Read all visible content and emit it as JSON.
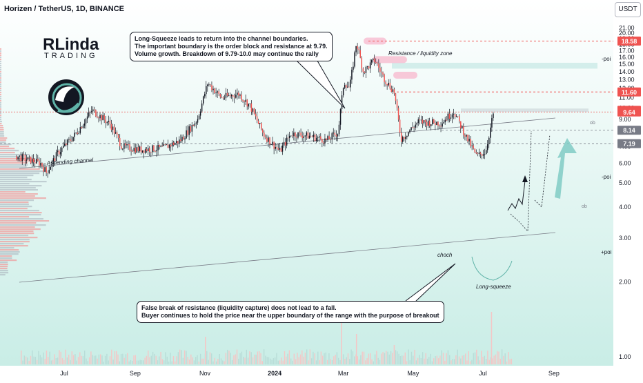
{
  "header": {
    "symbol_line": "Horizen / TetherUS, 1D, BINANCE",
    "currency_button": "USDT"
  },
  "logo": {
    "mark": "RLinda",
    "sub": "TRADING"
  },
  "notes": {
    "top": [
      "Long-Squeeze leads to return into the channel boundaries.",
      "The important boundary is the order block and resistance at 9.79.",
      "Volume growth. Breakdown of 9.79-10.0 may continue the rally"
    ],
    "bottom": [
      "False break of resistance (liquidity capture) does not lead to a fall.",
      "Buyer continues to hold the price near the upper boundary of the range with the purpose of breakout"
    ]
  },
  "annotations": {
    "resistance_zone": "Resistance / liquidity zone",
    "ascending_channel": "Ascending channel",
    "choch": "choch",
    "long_squeeze": "Long-squeeze",
    "ob_upper": "ob",
    "ob_lower": "ob",
    "poi_top": "-poi",
    "poi_mid": "-poi",
    "poi_low": "+poi"
  },
  "colors": {
    "up": "#26a69a",
    "down": "#ef5350",
    "candle": "#131722",
    "level_red": "#ef5350",
    "level_grey": "#787b86",
    "accent": "#5fb3a8"
  },
  "chart_data": {
    "type": "candlestick",
    "title": "Horizen / TetherUS, 1D, BINANCE",
    "y_scale": "log",
    "ylim": [
      0.85,
      26
    ],
    "y_ticks": [
      "1.00",
      "2.00",
      "3.00",
      "4.00",
      "5.00",
      "6.00",
      "7.00",
      "8.00",
      "9.00",
      "10.00",
      "11.00",
      "12.00",
      "13.00",
      "14.00",
      "15.00",
      "16.00",
      "17.00",
      "18.00",
      "19.00",
      "20.00",
      "21.00"
    ],
    "x_ticks": [
      "Jul",
      "Sep",
      "Nov",
      "2024",
      "Mar",
      "May",
      "Jul",
      "Sep"
    ],
    "price_labels": [
      {
        "label": "18.58",
        "value": 18.58,
        "color": "#ef5350"
      },
      {
        "label": "11.60",
        "value": 11.6,
        "color": "#ef5350"
      },
      {
        "label": "9.79",
        "value": 9.79,
        "color": "#ef5350"
      },
      {
        "label": "9.64",
        "value": 9.64,
        "color": "#ef5350"
      },
      {
        "label": "8.14",
        "value": 8.14,
        "color": "#787b86"
      },
      {
        "label": "7.19",
        "value": 7.19,
        "color": "#787b86"
      }
    ],
    "price_path": [
      [
        "2023-05-20",
        6.4
      ],
      [
        "2023-06-10",
        6.0
      ],
      [
        "2023-06-15",
        5.5
      ],
      [
        "2023-06-25",
        6.6
      ],
      [
        "2023-07-10",
        7.8
      ],
      [
        "2023-07-25",
        9.8
      ],
      [
        "2023-08-10",
        8.6
      ],
      [
        "2023-08-20",
        7.0
      ],
      [
        "2023-09-05",
        6.8
      ],
      [
        "2023-09-25",
        6.9
      ],
      [
        "2023-10-10",
        7.4
      ],
      [
        "2023-10-25",
        9.0
      ],
      [
        "2023-11-03",
        12.6
      ],
      [
        "2023-11-15",
        11.0
      ],
      [
        "2023-11-30",
        11.4
      ],
      [
        "2023-12-10",
        10.2
      ],
      [
        "2023-12-22",
        7.8
      ],
      [
        "2024-01-05",
        6.7
      ],
      [
        "2024-01-15",
        7.9
      ],
      [
        "2024-02-01",
        7.7
      ],
      [
        "2024-02-15",
        7.4
      ],
      [
        "2024-02-25",
        8.0
      ],
      [
        "2024-03-01",
        12.8
      ],
      [
        "2024-03-06",
        12.0
      ],
      [
        "2024-03-12",
        18.4
      ],
      [
        "2024-03-18",
        14.0
      ],
      [
        "2024-03-28",
        15.6
      ],
      [
        "2024-04-05",
        13.2
      ],
      [
        "2024-04-14",
        11.6
      ],
      [
        "2024-04-20",
        7.5
      ],
      [
        "2024-05-05",
        8.8
      ],
      [
        "2024-05-25",
        8.7
      ],
      [
        "2024-06-05",
        9.7
      ],
      [
        "2024-06-15",
        7.8
      ],
      [
        "2024-06-25",
        6.4
      ],
      [
        "2024-07-03",
        6.7
      ],
      [
        "2024-07-10",
        9.7
      ]
    ],
    "volume_spikes": [
      {
        "date": "2023-11-01",
        "value": 0.5
      },
      {
        "date": "2024-02-28",
        "value": 0.8
      },
      {
        "date": "2024-03-12",
        "value": 0.55
      },
      {
        "date": "2024-04-14",
        "value": 0.35
      },
      {
        "date": "2024-07-08",
        "value": 0.95
      }
    ]
  }
}
